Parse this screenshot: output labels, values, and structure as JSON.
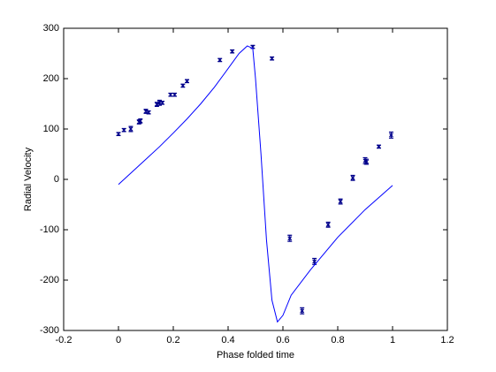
{
  "chart_data": {
    "type": "scatter",
    "xlabel": "Phase folded time",
    "ylabel": "Radial Velocity",
    "xlim": [
      -0.2,
      1.2
    ],
    "xticks": [
      -0.2,
      0,
      0.2,
      0.4,
      0.6,
      0.8,
      1,
      1.2
    ],
    "ylim": [
      -300,
      300
    ],
    "yticks": [
      -300,
      -200,
      -100,
      0,
      100,
      200,
      300
    ],
    "grid": false,
    "series": [
      {
        "style": "errorbar",
        "color": "#00008b",
        "x": [
          0,
          0.02,
          0.045,
          0.075,
          0.08,
          0.1,
          0.11,
          0.14,
          0.15,
          0.16,
          0.19,
          0.205,
          0.235,
          0.25,
          0.37,
          0.415,
          0.49,
          0.56,
          0.625,
          0.67,
          0.715,
          0.765,
          0.81,
          0.855,
          0.9,
          0.905,
          0.95,
          0.995
        ],
        "values": [
          90,
          98,
          100,
          114,
          116,
          135,
          133,
          149,
          152,
          152,
          168,
          168,
          186,
          195,
          237,
          254,
          263,
          240,
          -117,
          -261,
          -163,
          -90,
          -44,
          3,
          37,
          35,
          65,
          88
        ],
        "errors": [
          3,
          3,
          5,
          4,
          4,
          4,
          3,
          4,
          5,
          3,
          3,
          3,
          3,
          3,
          3,
          3,
          3,
          3,
          6,
          6,
          6,
          5,
          5,
          5,
          6,
          5,
          3,
          6
        ]
      },
      {
        "style": "line",
        "color": "#0000ff",
        "x": [
          0,
          0.05,
          0.1,
          0.15,
          0.2,
          0.25,
          0.3,
          0.35,
          0.4,
          0.44,
          0.47,
          0.49,
          0.5,
          0.52,
          0.54,
          0.56,
          0.58,
          0.6,
          0.63,
          0.7,
          0.8,
          0.9,
          1.0
        ],
        "values": [
          -10,
          15,
          40,
          65,
          92,
          120,
          150,
          183,
          220,
          250,
          265,
          260,
          200,
          50,
          -120,
          -240,
          -283,
          -270,
          -230,
          -180,
          -115,
          -60,
          -12
        ]
      }
    ]
  }
}
